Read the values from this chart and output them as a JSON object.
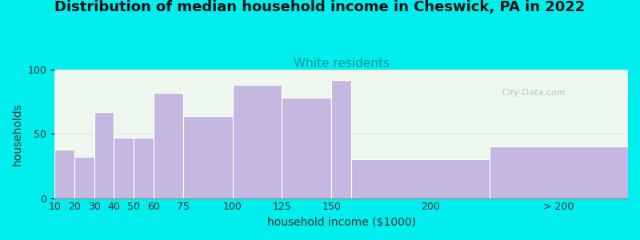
{
  "title": "Distribution of median household income in Cheswick, PA in 2022",
  "subtitle": "White residents",
  "xlabel": "household income ($1000)",
  "ylabel": "households",
  "background_color": "#00EEEE",
  "bar_color": "#c5b8e0",
  "bar_edge_color": "#ffffff",
  "categories": [
    "10",
    "20",
    "30",
    "40",
    "50",
    "60",
    "75",
    "100",
    "125",
    "150",
    "200",
    "> 200"
  ],
  "left_edges": [
    10,
    20,
    30,
    40,
    50,
    60,
    75,
    100,
    125,
    150,
    160,
    230
  ],
  "widths": [
    10,
    10,
    10,
    10,
    10,
    15,
    25,
    25,
    25,
    10,
    70,
    70
  ],
  "values": [
    38,
    32,
    67,
    47,
    47,
    82,
    64,
    88,
    78,
    92,
    30,
    40
  ],
  "ylim": [
    0,
    100
  ],
  "yticks": [
    0,
    50,
    100
  ],
  "title_fontsize": 13,
  "subtitle_fontsize": 11,
  "subtitle_color": "#009999",
  "axis_label_fontsize": 10,
  "tick_fontsize": 9,
  "watermark_text": "City-Data.com"
}
